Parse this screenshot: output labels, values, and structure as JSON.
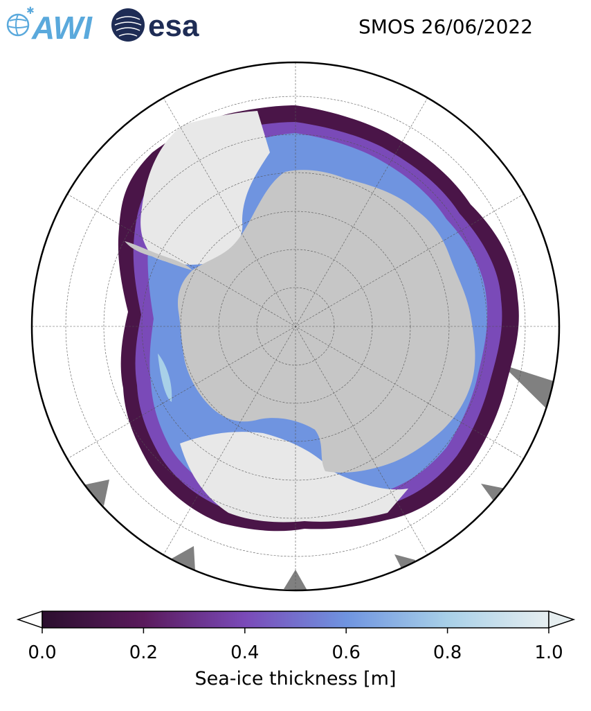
{
  "logos": {
    "awi_text": "AWI",
    "esa_text": "esa",
    "awi_color": "#5aa9dc",
    "esa_color": "#1e2c55"
  },
  "title": "SMOS 26/06/2022",
  "map": {
    "projection": "south-polar-stereographic",
    "graticule": true,
    "latitude_circles_deg": [
      -85,
      -80,
      -75,
      -70,
      -65,
      -60,
      -55,
      -50
    ],
    "meridians_every_deg": 30,
    "land_color": "#c6c6c6",
    "ocean_color": "#ffffff",
    "missing_color": "#808080",
    "boundary_color": "#000000"
  },
  "colorbar": {
    "label": "Sea-ice thickness [m]",
    "colormap": "dense-reversed",
    "stops": [
      "#2b0f2e",
      "#5a1a5c",
      "#7a4ab8",
      "#6f94e0",
      "#a8d0e8",
      "#e6eef0"
    ],
    "min": 0.0,
    "max": 1.0,
    "extend": "both",
    "ticks": [
      "0.0",
      "0.2",
      "0.4",
      "0.6",
      "0.8",
      "1.0"
    ]
  }
}
